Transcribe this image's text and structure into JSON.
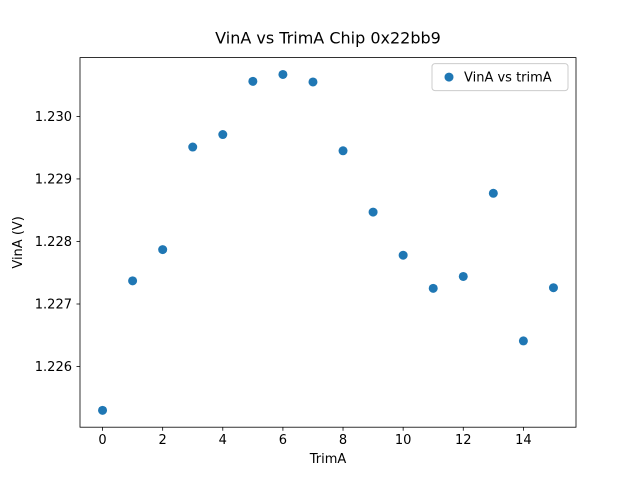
{
  "chart_data": {
    "type": "scatter",
    "title": "VinA vs TrimA Chip 0x22bb9",
    "xlabel": "TrimA",
    "ylabel": "VinA (V)",
    "series": [
      {
        "name": "VinA vs trimA",
        "color": "#1f77b4",
        "x": [
          0,
          1,
          2,
          3,
          4,
          5,
          6,
          7,
          8,
          9,
          10,
          11,
          12,
          13,
          14,
          15
        ],
        "y": [
          1.2253,
          1.22737,
          1.22787,
          1.22951,
          1.22971,
          1.23056,
          1.23067,
          1.23055,
          1.22945,
          1.22847,
          1.22778,
          1.22725,
          1.22744,
          1.22877,
          1.22641,
          1.22726
        ]
      }
    ],
    "xticks": [
      0,
      2,
      4,
      6,
      8,
      10,
      12,
      14
    ],
    "yticks": [
      1.226,
      1.227,
      1.228,
      1.229,
      1.23
    ],
    "xlim": [
      -0.75,
      15.75
    ],
    "ylim": [
      1.22503,
      1.23094
    ],
    "legend": {
      "position": "upper right",
      "entries": [
        {
          "label": "VinA vs trimA",
          "marker": "circle",
          "color": "#1f77b4"
        }
      ]
    },
    "grid": false,
    "axes_edge_color": "#000000",
    "legend_edge_color": "#cccccc"
  }
}
